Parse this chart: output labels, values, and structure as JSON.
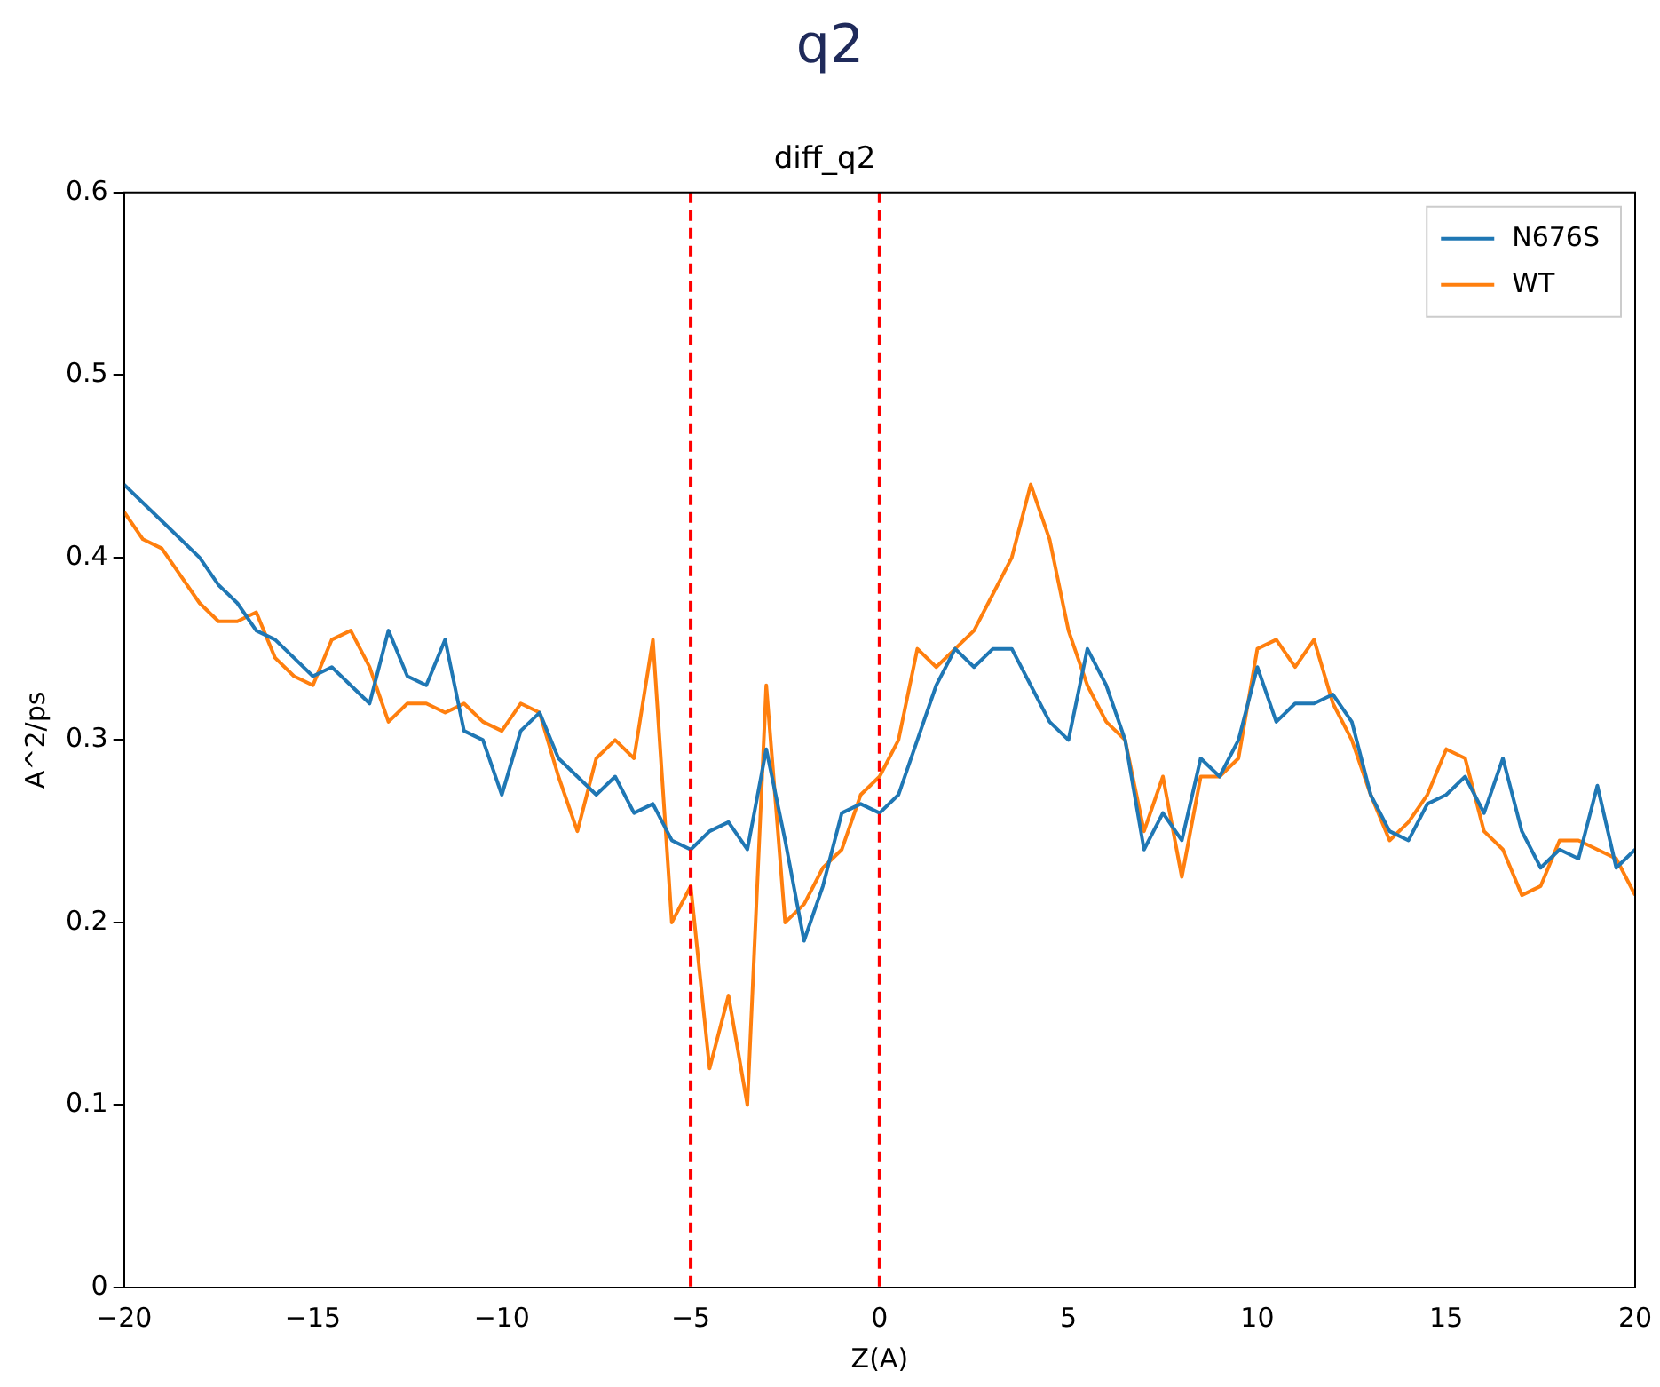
{
  "chart_data": {
    "type": "line",
    "title": "q2",
    "subtitle": "diff_q2",
    "xlabel": "Z(A)",
    "ylabel": "A^2/ps",
    "x": [
      -20,
      -19.5,
      -19,
      -18.5,
      -18,
      -17.5,
      -17,
      -16.5,
      -16,
      -15.5,
      -15,
      -14.5,
      -14,
      -13.5,
      -13,
      -12.5,
      -12,
      -11.5,
      -11,
      -10.5,
      -10,
      -9.5,
      -9,
      -8.5,
      -8,
      -7.5,
      -7,
      -6.5,
      -6,
      -5.5,
      -5,
      -4.5,
      -4,
      -3.5,
      -3,
      -2.5,
      -2,
      -1.5,
      -1,
      -0.5,
      0,
      0.5,
      1,
      1.5,
      2,
      2.5,
      3,
      3.5,
      4,
      4.5,
      5,
      5.5,
      6,
      6.5,
      7,
      7.5,
      8,
      8.5,
      9,
      9.5,
      10,
      10.5,
      11,
      11.5,
      12,
      12.5,
      13,
      13.5,
      14,
      14.5,
      15,
      15.5,
      16,
      16.5,
      17,
      17.5,
      18,
      18.5,
      19,
      19.5,
      20
    ],
    "series": [
      {
        "name": "N676S",
        "color": "#1f77b4",
        "values": [
          0.44,
          0.43,
          0.42,
          0.41,
          0.4,
          0.385,
          0.375,
          0.36,
          0.355,
          0.345,
          0.335,
          0.34,
          0.33,
          0.32,
          0.36,
          0.335,
          0.33,
          0.355,
          0.305,
          0.3,
          0.27,
          0.305,
          0.315,
          0.29,
          0.28,
          0.27,
          0.28,
          0.26,
          0.265,
          0.245,
          0.24,
          0.25,
          0.255,
          0.24,
          0.295,
          0.245,
          0.19,
          0.22,
          0.26,
          0.265,
          0.26,
          0.27,
          0.3,
          0.33,
          0.35,
          0.34,
          0.35,
          0.35,
          0.33,
          0.31,
          0.3,
          0.35,
          0.33,
          0.3,
          0.24,
          0.26,
          0.245,
          0.29,
          0.28,
          0.3,
          0.34,
          0.31,
          0.32,
          0.32,
          0.325,
          0.31,
          0.27,
          0.25,
          0.245,
          0.265,
          0.27,
          0.28,
          0.26,
          0.29,
          0.25,
          0.23,
          0.24,
          0.235,
          0.275,
          0.23,
          0.24
        ]
      },
      {
        "name": "WT",
        "color": "#ff7f0e",
        "values": [
          0.425,
          0.41,
          0.405,
          0.39,
          0.375,
          0.365,
          0.365,
          0.37,
          0.345,
          0.335,
          0.33,
          0.355,
          0.36,
          0.34,
          0.31,
          0.32,
          0.32,
          0.315,
          0.32,
          0.31,
          0.305,
          0.32,
          0.315,
          0.28,
          0.25,
          0.29,
          0.3,
          0.29,
          0.355,
          0.2,
          0.22,
          0.12,
          0.16,
          0.1,
          0.33,
          0.2,
          0.21,
          0.23,
          0.24,
          0.27,
          0.28,
          0.3,
          0.35,
          0.34,
          0.35,
          0.36,
          0.38,
          0.4,
          0.44,
          0.41,
          0.36,
          0.33,
          0.31,
          0.3,
          0.25,
          0.28,
          0.225,
          0.28,
          0.28,
          0.29,
          0.35,
          0.355,
          0.34,
          0.355,
          0.32,
          0.3,
          0.27,
          0.245,
          0.255,
          0.27,
          0.295,
          0.29,
          0.25,
          0.24,
          0.215,
          0.22,
          0.245,
          0.245,
          0.24,
          0.235,
          0.215
        ]
      }
    ],
    "xlim": [
      -20,
      20
    ],
    "xticks": [
      -20,
      -15,
      -10,
      -5,
      0,
      5,
      10,
      15,
      20
    ],
    "ylim": [
      0,
      0.6
    ],
    "yticks": [
      0.0,
      0.1,
      0.2,
      0.3,
      0.4,
      0.5,
      0.6
    ],
    "ref_lines": [
      {
        "axis": "x",
        "value": -5,
        "color": "#ff0000",
        "line_style": "dashed"
      },
      {
        "axis": "x",
        "value": 0,
        "color": "#ff0000",
        "line_style": "dashed"
      }
    ],
    "legend": "top right",
    "grid": false,
    "marker": "none",
    "line_style": "solid"
  }
}
